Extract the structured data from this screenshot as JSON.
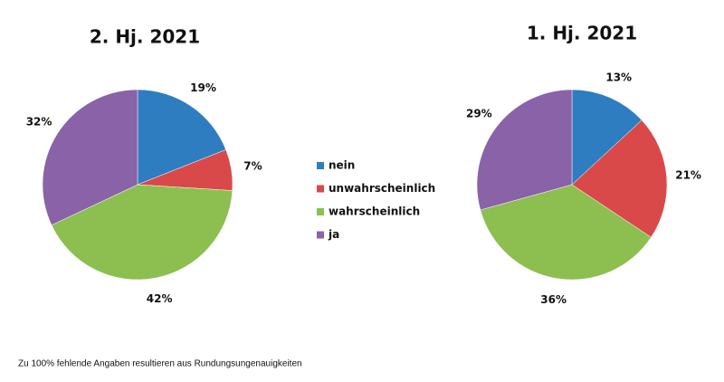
{
  "chart_data": [
    {
      "type": "pie",
      "title": "2. Hj. 2021",
      "categories": [
        "nein",
        "unwahrscheinlich",
        "wahrscheinlich",
        "ja"
      ],
      "values": [
        19,
        7,
        42,
        32
      ],
      "value_labels": [
        "19%",
        "7%",
        "42%",
        "32%"
      ],
      "colors": [
        "#2e7dc0",
        "#d9494a",
        "#8cbf4f",
        "#8a62a8"
      ]
    },
    {
      "type": "pie",
      "title": "1. Hj. 2021",
      "categories": [
        "nein",
        "unwahrscheinlich",
        "wahrscheinlich",
        "ja"
      ],
      "values": [
        13,
        21,
        36,
        29
      ],
      "value_labels": [
        "13%",
        "21%",
        "36%",
        "29%"
      ],
      "colors": [
        "#2e7dc0",
        "#d9494a",
        "#8cbf4f",
        "#8a62a8"
      ]
    }
  ],
  "footnote": "Zu 100% fehlende Angaben resultieren aus Rundungsungenauigkeiten"
}
